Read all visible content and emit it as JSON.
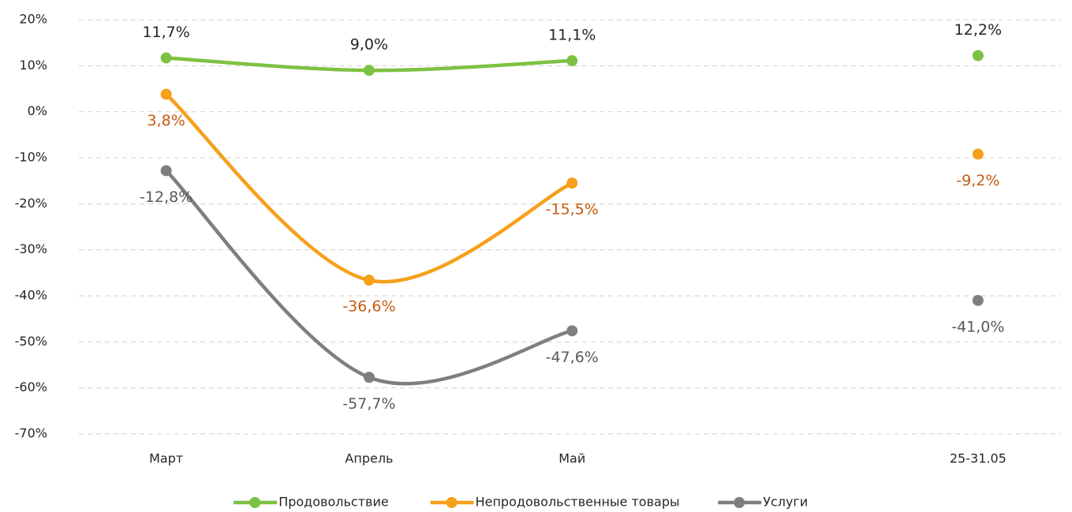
{
  "chart_data": {
    "type": "line",
    "categories": [
      "Март",
      "Апрель",
      "Май",
      null,
      "25-31.05"
    ],
    "series": [
      {
        "name": "Продовольствие",
        "color": "#7dc242",
        "label_color": "#262626",
        "values": [
          11.7,
          9.0,
          11.1,
          null,
          12.2
        ],
        "value_labels": [
          "11,7%",
          "9,0%",
          "11,1%",
          null,
          "12,2%"
        ]
      },
      {
        "name": "Непродовольственные товары",
        "color": "#f7a01c",
        "label_color": "#c55a11",
        "values": [
          3.8,
          -36.6,
          -15.5,
          null,
          -9.2
        ],
        "value_labels": [
          "3,8%",
          "-36,6%",
          "-15,5%",
          null,
          "-9,2%"
        ]
      },
      {
        "name": "Услуги",
        "color": "#7f7f7f",
        "label_color": "#595959",
        "values": [
          -12.8,
          -57.7,
          -47.6,
          null,
          -41.0
        ],
        "value_labels": [
          "-12,8%",
          "-57,7%",
          "-47,6%",
          null,
          "-41,0%"
        ]
      }
    ],
    "ylim": [
      -70,
      20
    ],
    "yticks": [
      {
        "value": -70,
        "label": "-70%"
      },
      {
        "value": -60,
        "label": "-60%"
      },
      {
        "value": -50,
        "label": "-50%"
      },
      {
        "value": -40,
        "label": "-40%"
      },
      {
        "value": -30,
        "label": "-30%"
      },
      {
        "value": -20,
        "label": "-20%"
      },
      {
        "value": -10,
        "label": "-10%"
      },
      {
        "value": 0,
        "label": "0%"
      },
      {
        "value": 10,
        "label": "10%"
      },
      {
        "value": 20,
        "label": "20%"
      }
    ],
    "grid": true,
    "legend": "bottom"
  }
}
